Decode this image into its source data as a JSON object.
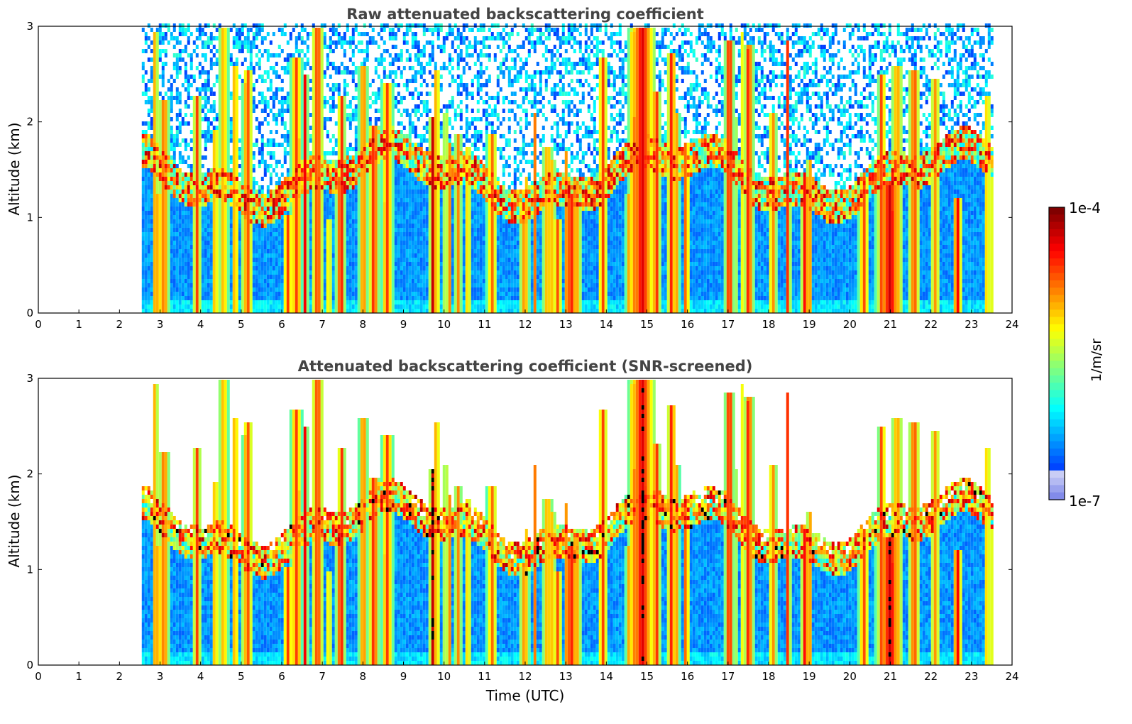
{
  "chart_data": [
    {
      "type": "heatmap",
      "title": "Raw attenuated backscattering coefficient",
      "ylabel": "Altitude (km)",
      "xlabel": "",
      "xlim": [
        0,
        24
      ],
      "ylim": [
        0,
        3
      ],
      "x_ticks": [
        "0",
        "1",
        "2",
        "3",
        "4",
        "5",
        "6",
        "7",
        "8",
        "9",
        "10",
        "11",
        "12",
        "13",
        "14",
        "15",
        "16",
        "17",
        "18",
        "19",
        "20",
        "21",
        "22",
        "23",
        "24"
      ],
      "y_ticks": [
        "0",
        "1",
        "2",
        "3"
      ],
      "data_start_hour": 2.55,
      "data_end_hour": 23.6
    },
    {
      "type": "heatmap",
      "title": "Attenuated backscattering coefficient (SNR-screened)",
      "ylabel": "Altitude (km)",
      "xlabel": "Time (UTC)",
      "xlim": [
        0,
        24
      ],
      "ylim": [
        0,
        3
      ],
      "x_ticks": [
        "0",
        "1",
        "2",
        "3",
        "4",
        "5",
        "6",
        "7",
        "8",
        "9",
        "10",
        "11",
        "12",
        "13",
        "14",
        "15",
        "16",
        "17",
        "18",
        "19",
        "20",
        "21",
        "22",
        "23",
        "24"
      ],
      "y_ticks": [
        "0",
        "1",
        "2",
        "3"
      ],
      "data_start_hour": 2.55,
      "data_end_hour": 23.6
    }
  ],
  "colorbar": {
    "max_label": "1e-4",
    "min_label": "1e-7",
    "unit": "1/m/sr",
    "colormap": "jet"
  }
}
